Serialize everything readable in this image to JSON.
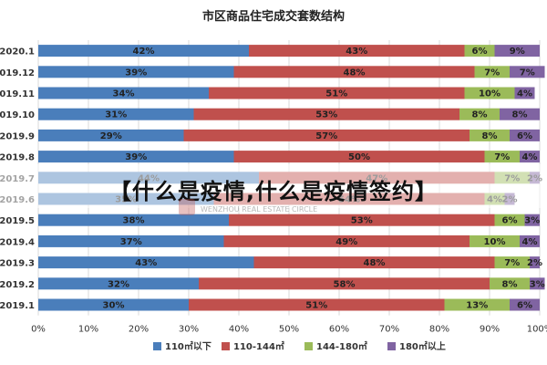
{
  "chart_data": {
    "type": "bar",
    "orientation": "horizontal",
    "stacked": true,
    "title": "市区商品住宅成交套数结构",
    "categories": [
      "2020.1",
      "2019.12",
      "2019.11",
      "2019.10",
      "2019.9",
      "2019.8",
      "2019.7",
      "2019.6",
      "2019.5",
      "2019.4",
      "2019.3",
      "2019.2",
      "2019.1"
    ],
    "series": [
      {
        "name": "110㎡以下",
        "color": "#4a7ebb",
        "values": [
          42,
          39,
          34,
          31,
          29,
          39,
          44,
          35,
          38,
          37,
          43,
          32,
          30
        ]
      },
      {
        "name": "110-144㎡",
        "color": "#c0504d",
        "values": [
          43,
          48,
          51,
          53,
          57,
          50,
          47,
          54,
          53,
          49,
          48,
          58,
          51
        ]
      },
      {
        "name": "144-180㎡",
        "color": "#9bbb59",
        "values": [
          6,
          7,
          10,
          8,
          8,
          7,
          7,
          4,
          6,
          10,
          7,
          8,
          13
        ]
      },
      {
        "name": "180㎡以上",
        "color": "#8064a2",
        "values": [
          9,
          7,
          4,
          8,
          6,
          4,
          2,
          2,
          3,
          4,
          2,
          3,
          6
        ]
      }
    ],
    "xlim": [
      0,
      100
    ],
    "xticks": [
      "0%",
      "10%",
      "20%",
      "30%",
      "40%",
      "50%",
      "60%",
      "70%",
      "80%",
      "90%",
      "100%"
    ],
    "legend_position": "bottom",
    "grid": true
  },
  "overlay": {
    "banner_text": "【什么是疫情,什么是疫情签约】",
    "watermark_text": "WENZHOU REAL ESTATE CIRCLE"
  }
}
